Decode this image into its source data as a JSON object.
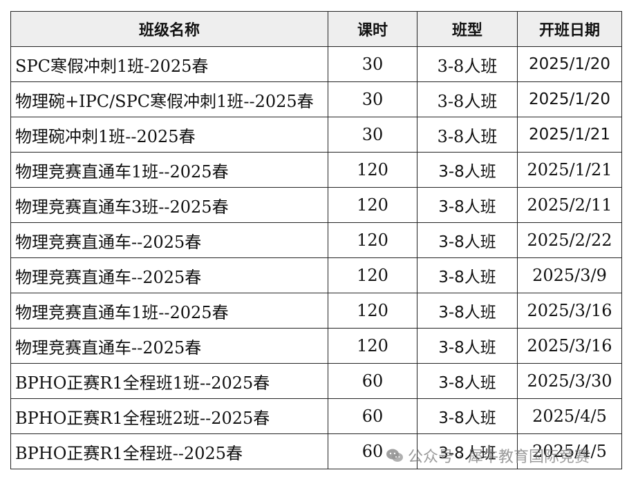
{
  "header": {
    "class_name": "班级名称",
    "hours": "课时",
    "class_type": "班型",
    "start_date": "开班日期"
  },
  "rows": [
    {
      "name": "SPC寒假冲刺1班-2025春",
      "hours": "30",
      "type": "3-8人班",
      "date": "2025/1/20",
      "type_sans": false,
      "date_sans": true
    },
    {
      "name": "物理碗+IPC/SPC寒假冲刺1班--2025春",
      "hours": "30",
      "type": "3-8人班",
      "date": "2025/1/20",
      "type_sans": false,
      "date_sans": true
    },
    {
      "name": "物理碗冲刺1班--2025春",
      "hours": "30",
      "type": "3-8人班",
      "date": "2025/1/21",
      "type_sans": false,
      "date_sans": true
    },
    {
      "name": "物理竞赛直通车1班--2025春",
      "hours": "120",
      "type": "3-8人班",
      "date": "2025/1/21",
      "type_sans": true,
      "date_sans": false
    },
    {
      "name": "物理竞赛直通车3班--2025春",
      "hours": "120",
      "type": "3-8人班",
      "date": "2025/2/11",
      "type_sans": true,
      "date_sans": false
    },
    {
      "name": "物理竞赛直通车--2025春",
      "hours": "120",
      "type": "3-8人班",
      "date": "2025/2/22",
      "type_sans": true,
      "date_sans": false
    },
    {
      "name": "物理竞赛直通车--2025春",
      "hours": "120",
      "type": "3-8人班",
      "date": "2025/3/9",
      "type_sans": true,
      "date_sans": false
    },
    {
      "name": "物理竞赛直通车1班--2025春",
      "hours": "120",
      "type": "3-8人班",
      "date": "2025/3/16",
      "type_sans": true,
      "date_sans": false
    },
    {
      "name": "物理竞赛直通车--2025春",
      "hours": "120",
      "type": "3-8人班",
      "date": "2025/3/16",
      "type_sans": true,
      "date_sans": false
    },
    {
      "name": "BPHO正赛R1全程班1班--2025春",
      "hours": "60",
      "type": "3-8人班",
      "date": "2025/3/30",
      "type_sans": true,
      "date_sans": false
    },
    {
      "name": "BPHO正赛R1全程班2班--2025春",
      "hours": "60",
      "type": "3-8人班",
      "date": "2025/4/5",
      "type_sans": true,
      "date_sans": false
    },
    {
      "name": "BPHO正赛R1全程班--2025春",
      "hours": "60",
      "type": "3-8人班",
      "date": "2025/4/5",
      "type_sans": true,
      "date_sans": false
    }
  ],
  "watermark": {
    "text": "公众号 · 犀牛教育国际竞赛",
    "icon": "wechat-icon"
  }
}
